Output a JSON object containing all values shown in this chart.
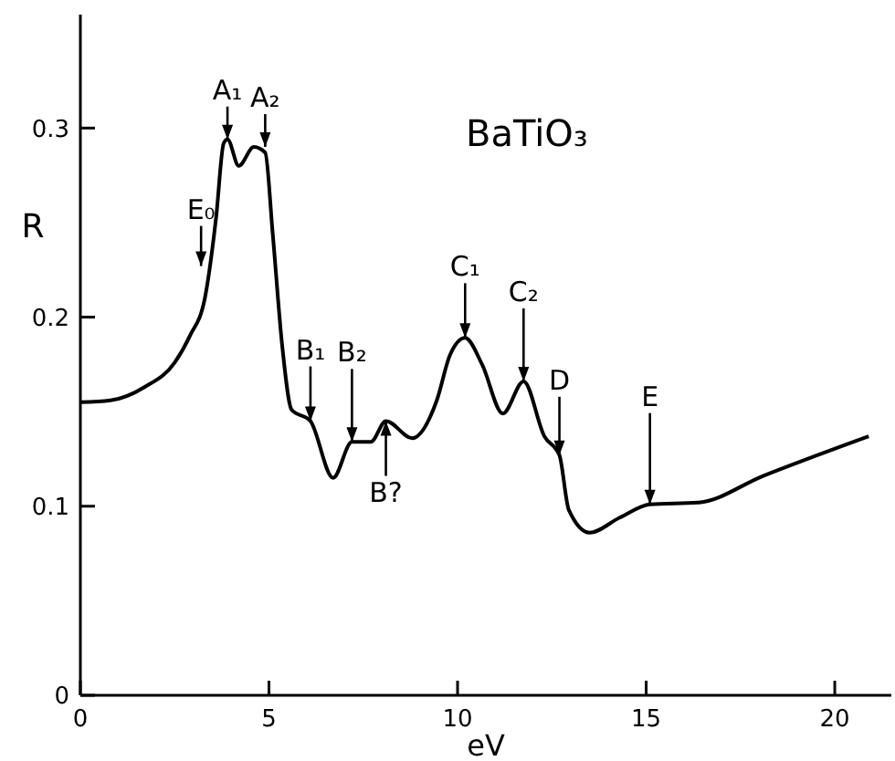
{
  "chart_data": {
    "type": "line",
    "xlabel": "eV",
    "ylabel": "R",
    "xlim": [
      0,
      21.5
    ],
    "ylim": [
      0,
      0.36
    ],
    "xticks": [
      0,
      5,
      10,
      15,
      20
    ],
    "yticks": [
      0,
      0.1,
      0.2,
      0.3
    ],
    "grid": false,
    "legend": false,
    "marker": "none",
    "line_style": "solid",
    "x": [
      0,
      0.8,
      1.7,
      2.5,
      2.9,
      3.3,
      3.6,
      3.8,
      3.9,
      4.2,
      4.6,
      4.9,
      5.1,
      5.35,
      5.6,
      6.1,
      6.7,
      7.2,
      7.7,
      8.1,
      8.8,
      9.45,
      9.8,
      10.2,
      10.65,
      11.2,
      11.75,
      12.3,
      12.7,
      12.95,
      13.5,
      14.3,
      15.1,
      16.4,
      18.1,
      20.9
    ],
    "series": [
      {
        "color": "#000000",
        "values": [
          0.155,
          0.156,
          0.163,
          0.176,
          0.19,
          0.21,
          0.253,
          0.292,
          0.294,
          0.28,
          0.29,
          0.287,
          0.244,
          0.185,
          0.151,
          0.145,
          0.115,
          0.134,
          0.134,
          0.145,
          0.136,
          0.156,
          0.18,
          0.189,
          0.175,
          0.149,
          0.166,
          0.137,
          0.127,
          0.098,
          0.086,
          0.094,
          0.101,
          0.102,
          0.116,
          0.137
        ]
      }
    ],
    "annotations": [
      "BaTiO₃",
      {
        "text": "E₀",
        "x": 3.2,
        "y": 0.227
      },
      {
        "text": "A₁",
        "x": 3.9,
        "y": 0.294
      },
      {
        "text": "A₂",
        "x": 4.9,
        "y": 0.29
      },
      {
        "text": "B₁",
        "x": 6.1,
        "y": 0.145
      },
      {
        "text": "B₂",
        "x": 7.2,
        "y": 0.134
      },
      {
        "text": "B?",
        "x": 8.1,
        "y": 0.145
      },
      {
        "text": "C₁",
        "x": 10.2,
        "y": 0.189
      },
      {
        "text": "C₂",
        "x": 11.75,
        "y": 0.166
      },
      {
        "text": "D",
        "x": 12.7,
        "y": 0.127
      },
      {
        "text": "E",
        "x": 15.1,
        "y": 0.101
      }
    ]
  }
}
